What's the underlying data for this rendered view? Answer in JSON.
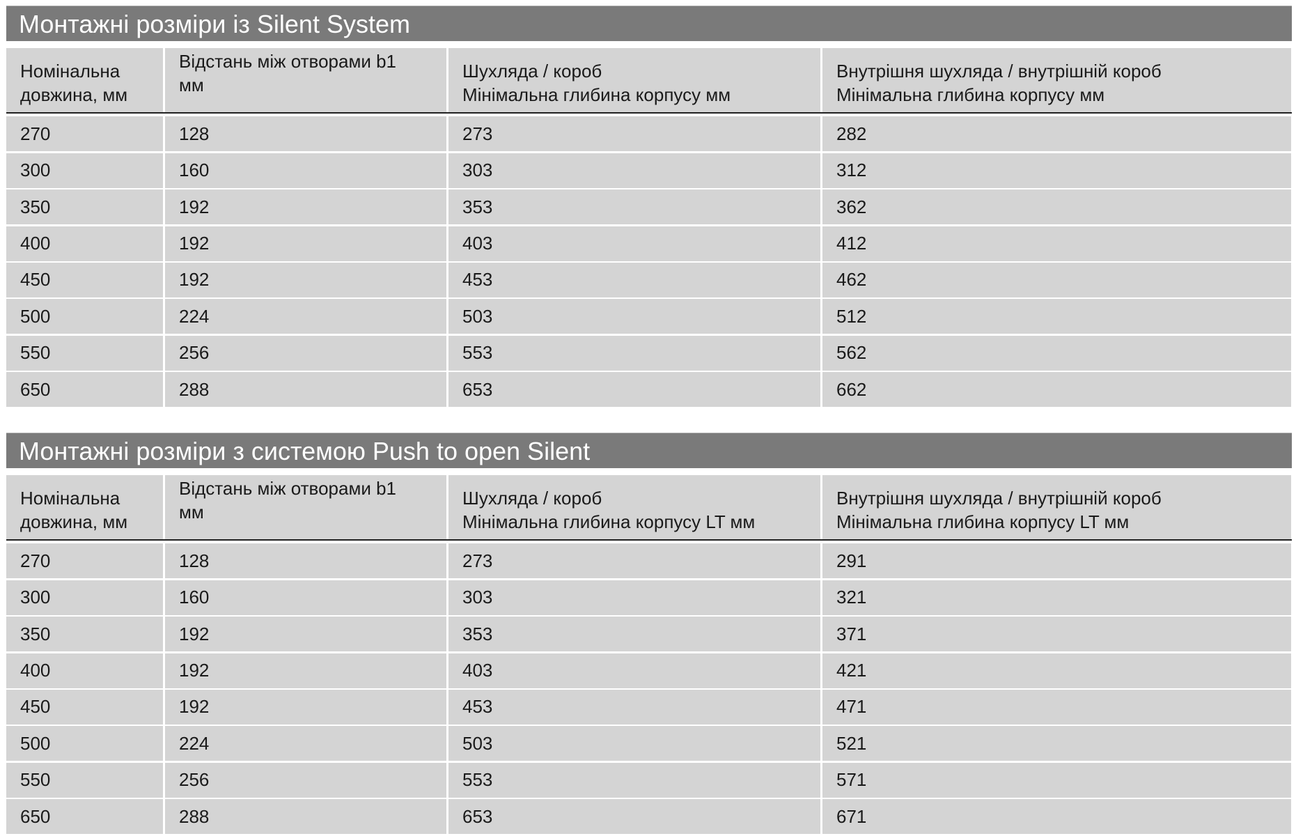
{
  "tables": [
    {
      "title": "Монтажні розміри із Silent System",
      "headers": [
        [
          "Номінальна",
          "довжина, мм"
        ],
        [
          "Відстань між отворами b1",
          "мм"
        ],
        [
          "Шухляда / короб",
          "Мінімальна глибина корпусу мм"
        ],
        [
          "Внутрішня шухляда / внутрішній короб",
          "Мінімальна глибина корпусу мм"
        ]
      ],
      "rows": [
        [
          "270",
          "128",
          "273",
          "282"
        ],
        [
          "300",
          "160",
          "303",
          "312"
        ],
        [
          "350",
          "192",
          "353",
          "362"
        ],
        [
          "400",
          "192",
          "403",
          "412"
        ],
        [
          "450",
          "192",
          "453",
          "462"
        ],
        [
          "500",
          "224",
          "503",
          "512"
        ],
        [
          "550",
          "256",
          "553",
          "562"
        ],
        [
          "650",
          "288",
          "653",
          "662"
        ]
      ]
    },
    {
      "title": "Монтажні розміри з системою Push to open Silent",
      "headers": [
        [
          "Номінальна",
          "довжина, мм"
        ],
        [
          "Відстань між отворами b1",
          "мм"
        ],
        [
          "Шухляда / короб",
          "Мінімальна глибина корпусу LT мм"
        ],
        [
          "Внутрішня шухляда / внутрішній короб",
          "Мінімальна глибина корпусу LT мм"
        ]
      ],
      "rows": [
        [
          "270",
          "128",
          "273",
          "291"
        ],
        [
          "300",
          "160",
          "303",
          "321"
        ],
        [
          "350",
          "192",
          "353",
          "371"
        ],
        [
          "400",
          "192",
          "403",
          "421"
        ],
        [
          "450",
          "192",
          "453",
          "471"
        ],
        [
          "500",
          "224",
          "503",
          "521"
        ],
        [
          "550",
          "256",
          "553",
          "571"
        ],
        [
          "650",
          "288",
          "653",
          "671"
        ]
      ]
    }
  ],
  "colors": {
    "title_bar": "#7a7a7a",
    "cell": "#d4d4d4",
    "title_text": "#ffffff"
  }
}
